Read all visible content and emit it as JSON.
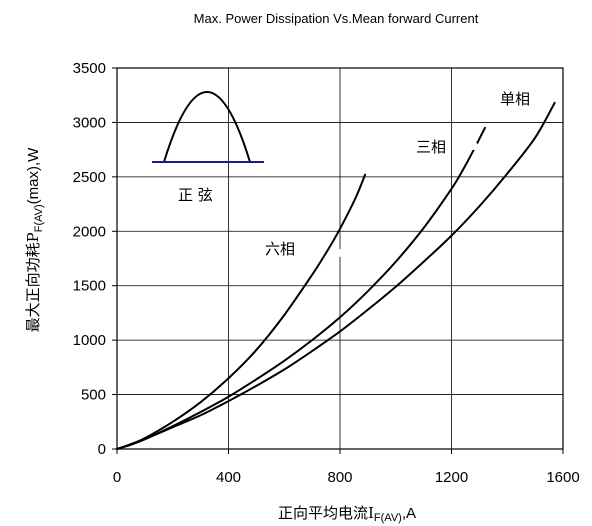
{
  "chart_data": {
    "type": "line",
    "title": "Max. Power Dissipation Vs.Mean forward Current",
    "xlabel": {
      "main": "正向平均电流I",
      "sub": "F(AV)",
      "tail": ",A"
    },
    "ylabel": {
      "main": "最大正向功耗P",
      "sub": "F(AV)",
      "tail": "(max),W"
    },
    "xlim": [
      0,
      1600
    ],
    "ylim": [
      0,
      3500
    ],
    "xticks": [
      0,
      400,
      800,
      1200,
      1600
    ],
    "yticks": [
      0,
      500,
      1000,
      1500,
      2000,
      2500,
      3000,
      3500
    ],
    "x_tick_labels": [
      "0",
      "400",
      "800",
      "1200",
      "1600"
    ],
    "y_tick_labels": [
      "0",
      "500",
      "1000",
      "1500",
      "2000",
      "2500",
      "3000",
      "3500"
    ],
    "grid": true,
    "series": [
      {
        "name": "单相",
        "x": [
          0,
          50,
          100,
          200,
          300,
          400,
          500,
          600,
          700,
          800,
          900,
          1000,
          1100,
          1200,
          1300,
          1400,
          1500,
          1570
        ],
        "y": [
          0,
          40,
          90,
          200,
          310,
          440,
          580,
          730,
          900,
          1080,
          1280,
          1490,
          1720,
          1960,
          2230,
          2530,
          2860,
          3180
        ]
      },
      {
        "name": "三相",
        "x": [
          0,
          50,
          100,
          200,
          300,
          400,
          500,
          600,
          700,
          800,
          900,
          1000,
          1100,
          1200,
          1240,
          1270,
          1320
        ],
        "y": [
          0,
          40,
          90,
          210,
          340,
          480,
          640,
          810,
          1000,
          1210,
          1450,
          1720,
          2030,
          2390,
          2560,
          2700,
          2950
        ]
      },
      {
        "name": "六相",
        "x": [
          0,
          50,
          100,
          200,
          300,
          400,
          500,
          600,
          700,
          740,
          780,
          820,
          860,
          890
        ],
        "y": [
          0,
          45,
          100,
          250,
          430,
          650,
          910,
          1230,
          1600,
          1760,
          1930,
          2120,
          2330,
          2520
        ]
      }
    ],
    "annotations": {
      "inset_label": "正 弦",
      "curve_labels": [
        "单相",
        "三相",
        "六相"
      ]
    }
  }
}
